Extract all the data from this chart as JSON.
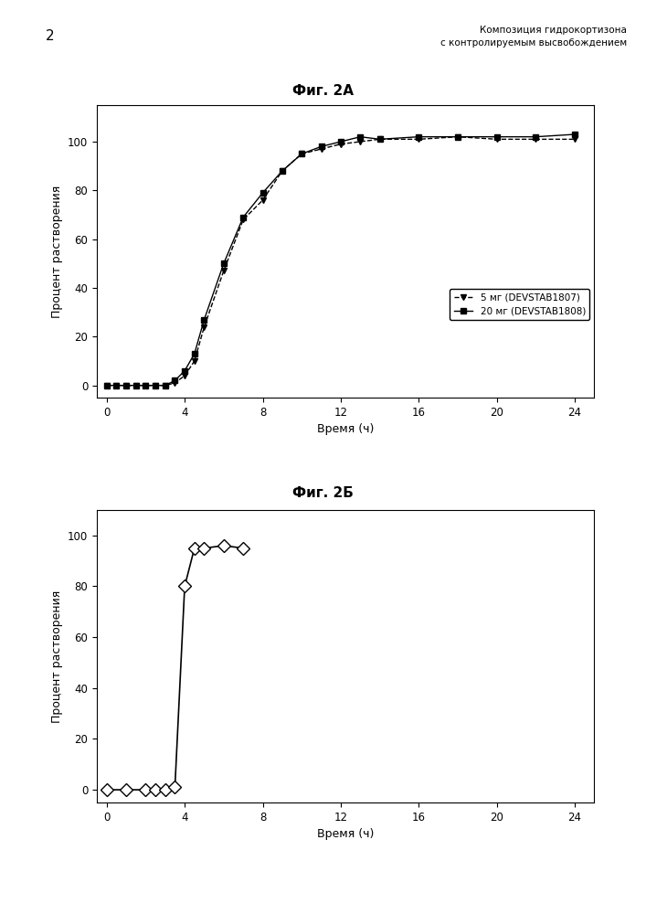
{
  "page_number": "2",
  "header_right_line1": "Композиция гидрокортизона",
  "header_right_line2": "с контролируемым высвобождением",
  "fig2a_title": "Фиг. 2А",
  "fig2b_title": "Фиг. 2Б",
  "ylabel": "Процент растворения",
  "xlabel": "Время (ч)",
  "fig2a_series1_label": "5 мг (DEVSTAB1807)",
  "fig2a_series2_label": "20 мг (DEVSTAB1808)",
  "fig2a_series1_x": [
    0,
    0.5,
    1,
    1.5,
    2,
    2.5,
    3,
    3.5,
    4,
    4.5,
    5,
    6,
    7,
    8,
    9,
    10,
    11,
    12,
    13,
    14,
    16,
    18,
    20,
    22,
    24
  ],
  "fig2a_series1_y": [
    0,
    0,
    0,
    0,
    0,
    0,
    0,
    1,
    4,
    10,
    24,
    47,
    68,
    76,
    88,
    95,
    97,
    99,
    100,
    101,
    101,
    102,
    101,
    101,
    101
  ],
  "fig2a_series2_x": [
    0,
    0.5,
    1,
    1.5,
    2,
    2.5,
    3,
    3.5,
    4,
    4.5,
    5,
    6,
    7,
    8,
    9,
    10,
    11,
    12,
    13,
    14,
    16,
    18,
    20,
    22,
    24
  ],
  "fig2a_series2_y": [
    0,
    0,
    0,
    0,
    0,
    0,
    0,
    2,
    6,
    13,
    27,
    50,
    69,
    79,
    88,
    95,
    98,
    100,
    102,
    101,
    102,
    102,
    102,
    102,
    103
  ],
  "fig2b_x": [
    0,
    1,
    2,
    2.5,
    3,
    3.5,
    4,
    4.5,
    5,
    6,
    7
  ],
  "fig2b_y": [
    0,
    0,
    0,
    0,
    0,
    1,
    80,
    95,
    95,
    96,
    95
  ],
  "xticks": [
    0,
    4,
    8,
    12,
    16,
    20,
    24
  ],
  "yticks_2a": [
    0,
    20,
    40,
    60,
    80,
    100
  ],
  "yticks_2b": [
    0,
    20,
    40,
    60,
    80,
    100
  ],
  "xlim": [
    0,
    25
  ],
  "ylim_2a": [
    -5,
    115
  ],
  "ylim_2b": [
    -5,
    110
  ],
  "bg_color": "#ffffff"
}
